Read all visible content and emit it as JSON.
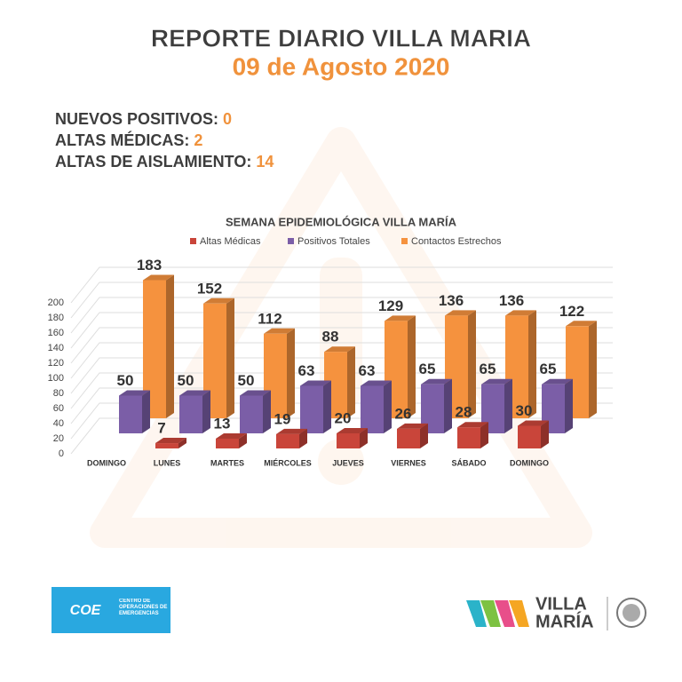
{
  "header": {
    "title": "REPORTE DIARIO VILLA MARIA",
    "date": "09 de Agosto 2020"
  },
  "stats": [
    {
      "label": "NUEVOS POSITIVOS:",
      "value": 0
    },
    {
      "label": "ALTAS MÉDICAS:",
      "value": 2
    },
    {
      "label": "ALTAS DE AISLAMIENTO:",
      "value": 14
    }
  ],
  "chart_data": {
    "type": "bar3d",
    "title": "SEMANA EPIDEMIOLÓGICA VILLA MARÍA",
    "categories": [
      "DOMINGO",
      "LUNES",
      "MARTES",
      "MIÉRCOLES",
      "JUEVES",
      "VIERNES",
      "SÁBADO",
      "DOMINGO"
    ],
    "series": [
      {
        "name": "Altas Médicas",
        "color": "#c9453a",
        "values": [
          null,
          7,
          13,
          19,
          20,
          26,
          28,
          30
        ]
      },
      {
        "name": "Positivos Totales",
        "color": "#7b5ea7",
        "values": [
          50,
          50,
          50,
          63,
          63,
          65,
          65,
          65
        ]
      },
      {
        "name": "Contactos Estrechos",
        "color": "#f5923e",
        "values": [
          183,
          152,
          112,
          88,
          129,
          136,
          136,
          122
        ]
      }
    ],
    "ylim": [
      0,
      200
    ],
    "yticks": [
      0,
      20,
      40,
      60,
      80,
      100,
      120,
      140,
      160,
      180,
      200
    ],
    "grid": true,
    "legend": "top"
  },
  "footer": {
    "coe": "COE",
    "coe_name": "CENTRO DE OPERACIONES DE EMERGENCIAS",
    "brand_1": "VILLA",
    "brand_2": "MARÍA"
  }
}
